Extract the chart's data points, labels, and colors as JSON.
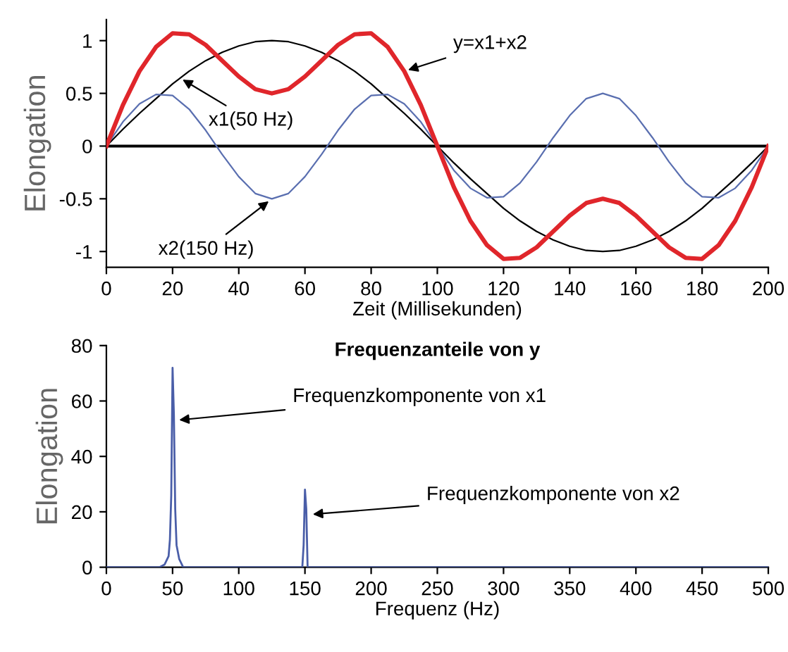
{
  "chart_data": [
    {
      "type": "line",
      "xlabel": "Zeit (Millisekunden)",
      "ylabel": "Elongation",
      "x": [
        0,
        5,
        10,
        15,
        20,
        25,
        30,
        35,
        40,
        45,
        50,
        55,
        60,
        65,
        70,
        75,
        80,
        85,
        90,
        95,
        100,
        105,
        110,
        115,
        120,
        125,
        130,
        135,
        140,
        145,
        150,
        155,
        160,
        165,
        170,
        175,
        180,
        185,
        190,
        195,
        200
      ],
      "series": [
        {
          "color": "#000000",
          "values": [
            0,
            0.16,
            0.31,
            0.45,
            0.59,
            0.71,
            0.81,
            0.89,
            0.95,
            0.99,
            1,
            0.99,
            0.95,
            0.89,
            0.81,
            0.71,
            0.59,
            0.45,
            0.31,
            0.16,
            0,
            -0.16,
            -0.31,
            -0.45,
            -0.59,
            -0.71,
            -0.81,
            -0.89,
            -0.95,
            -0.99,
            -1,
            -0.99,
            -0.95,
            -0.89,
            -0.81,
            -0.71,
            -0.59,
            -0.45,
            -0.31,
            -0.16,
            0
          ]
        },
        {
          "color": "#5a6fb0",
          "values": [
            0,
            0.23,
            0.4,
            0.49,
            0.48,
            0.35,
            0.15,
            -0.08,
            -0.29,
            -0.45,
            -0.5,
            -0.45,
            -0.29,
            -0.08,
            0.15,
            0.35,
            0.48,
            0.49,
            0.4,
            0.23,
            0,
            -0.23,
            -0.4,
            -0.49,
            -0.48,
            -0.35,
            -0.15,
            0.08,
            0.29,
            0.45,
            0.5,
            0.45,
            0.29,
            0.08,
            -0.15,
            -0.35,
            -0.48,
            -0.49,
            -0.4,
            -0.23,
            0
          ]
        },
        {
          "color": "#e0262b",
          "values": [
            0,
            0.39,
            0.71,
            0.94,
            1.07,
            1.06,
            0.96,
            0.81,
            0.66,
            0.54,
            0.5,
            0.54,
            0.66,
            0.81,
            0.96,
            1.06,
            1.07,
            0.94,
            0.71,
            0.39,
            0,
            -0.39,
            -0.71,
            -0.94,
            -1.07,
            -1.06,
            -0.96,
            -0.81,
            -0.66,
            -0.54,
            -0.5,
            -0.54,
            -0.66,
            -0.81,
            -0.96,
            -1.06,
            -1.07,
            -0.94,
            -0.71,
            -0.39,
            0
          ]
        }
      ],
      "xlim": [
        0,
        200
      ],
      "xticks": [
        0,
        20,
        40,
        60,
        80,
        100,
        120,
        140,
        160,
        180,
        200
      ],
      "ylim": [
        -1.15,
        1.2
      ],
      "yticks": [
        -1,
        -0.5,
        0,
        0.5,
        1
      ],
      "ref_lines": [
        {
          "axis": "y",
          "value": 0,
          "color": "#000000"
        }
      ],
      "annotations": [
        {
          "text": "y=x1+x2",
          "x": 90,
          "y": 0.71
        },
        {
          "text": "x1(50 Hz)",
          "x": 22,
          "y": 0.65
        },
        {
          "text": "x2(150 Hz)",
          "x": 50,
          "y": -0.5
        }
      ]
    },
    {
      "type": "line",
      "title": "Frequenzanteile von y",
      "xlabel": "Frequenz (Hz)",
      "ylabel": "Elongation",
      "series": [
        {
          "color": "#4a5ea8",
          "x": [
            0,
            40,
            44,
            47,
            48,
            49,
            50,
            51,
            52,
            53,
            55,
            58,
            148,
            149,
            150,
            151,
            152,
            500
          ],
          "values": [
            0,
            0,
            1,
            4,
            10,
            26,
            72,
            55,
            21,
            8,
            3,
            0,
            0,
            8,
            28,
            21,
            0,
            0
          ]
        }
      ],
      "xlim": [
        0,
        500
      ],
      "xticks": [
        0,
        50,
        100,
        150,
        200,
        250,
        300,
        350,
        400,
        450,
        500
      ],
      "ylim": [
        0,
        80
      ],
      "yticks": [
        0,
        20,
        40,
        60,
        80
      ],
      "annotations": [
        {
          "text": "Frequenzkomponente von x1",
          "x": 52,
          "y": 53
        },
        {
          "text": "Frequenzkomponente von x2",
          "x": 153,
          "y": 19
        }
      ]
    }
  ]
}
